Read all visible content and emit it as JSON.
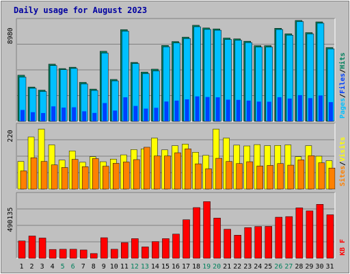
{
  "title": "Daily usage for August 2023",
  "colors": {
    "frame": "#c0c0c0",
    "title": "#0000a0",
    "gridline": "#808080",
    "hits": "#00805c",
    "files": "#0040ff",
    "pages": "#00c0ff",
    "visits": "#ffff00",
    "sites": "#ff8000",
    "kbytes": "#ff0000",
    "weekend": "#00805c",
    "weekday": "#000000"
  },
  "chart_data": [
    {
      "type": "bar",
      "name": "hits-files-pages",
      "categories": [
        "1",
        "2",
        "3",
        "4",
        "5",
        "6",
        "7",
        "8",
        "9",
        "10",
        "11",
        "12",
        "13",
        "14",
        "15",
        "16",
        "17",
        "18",
        "19",
        "20",
        "21",
        "22",
        "23",
        "24",
        "25",
        "26",
        "27",
        "28",
        "29",
        "30",
        "31"
      ],
      "weekend_days": [
        "5",
        "6",
        "12",
        "13",
        "19",
        "20",
        "26",
        "27"
      ],
      "ylabel_parts": [
        "Pages",
        "Files",
        "Hits"
      ],
      "ytick": 8980,
      "ylim": [
        0,
        10000
      ],
      "series": [
        {
          "name": "Hits",
          "values": [
            4480,
            3330,
            3030,
            5560,
            5130,
            5260,
            3790,
            3130,
            6810,
            4070,
            8920,
            5730,
            4790,
            5070,
            7380,
            7760,
            8190,
            9340,
            9080,
            8990,
            8100,
            8020,
            7790,
            7360,
            7360,
            9050,
            8510,
            9810,
            8630,
            9670,
            7170
          ]
        },
        {
          "name": "Files",
          "values": [
            1100,
            880,
            800,
            1450,
            1330,
            1360,
            970,
            810,
            1770,
            1040,
            2330,
            1490,
            1230,
            1310,
            1920,
            2010,
            2130,
            2420,
            2360,
            2330,
            2100,
            2080,
            2010,
            1910,
            1900,
            2340,
            2210,
            2540,
            2250,
            2510,
            1860
          ]
        },
        {
          "name": "Pages",
          "values": [
            4300,
            3210,
            2900,
            5420,
            5020,
            5140,
            3640,
            3000,
            6640,
            3930,
            8770,
            5620,
            4640,
            4900,
            7240,
            7620,
            8050,
            9200,
            8940,
            8860,
            7960,
            7880,
            7660,
            7220,
            7220,
            8930,
            8380,
            9700,
            8500,
            9540,
            7050
          ]
        }
      ]
    },
    {
      "type": "bar",
      "name": "visits-sites",
      "categories": [
        "1",
        "2",
        "3",
        "4",
        "5",
        "6",
        "7",
        "8",
        "9",
        "10",
        "11",
        "12",
        "13",
        "14",
        "15",
        "16",
        "17",
        "18",
        "19",
        "20",
        "21",
        "22",
        "23",
        "24",
        "25",
        "26",
        "27",
        "28",
        "29",
        "30",
        "31"
      ],
      "ylabel_parts": [
        "Sites",
        "Visits"
      ],
      "ytick": 220,
      "ylim": [
        0,
        250
      ],
      "series": [
        {
          "name": "Visits",
          "values": [
            105,
            198,
            228,
            168,
            110,
            145,
            102,
            123,
            104,
            114,
            130,
            150,
            153,
            194,
            149,
            165,
            171,
            140,
            128,
            228,
            194,
            167,
            164,
            169,
            165,
            166,
            168,
            123,
            165,
            125,
            108
          ]
        },
        {
          "name": "Sites",
          "values": [
            69,
            119,
            105,
            92,
            82,
            113,
            85,
            116,
            87,
            98,
            103,
            112,
            159,
            126,
            126,
            138,
            153,
            96,
            77,
            117,
            105,
            97,
            104,
            88,
            90,
            97,
            91,
            111,
            127,
            100,
            80
          ]
        }
      ]
    },
    {
      "type": "bar",
      "name": "kbytes",
      "categories": [
        "1",
        "2",
        "3",
        "4",
        "5",
        "6",
        "7",
        "8",
        "9",
        "10",
        "11",
        "12",
        "13",
        "14",
        "15",
        "16",
        "17",
        "18",
        "19",
        "20",
        "21",
        "22",
        "23",
        "24",
        "25",
        "26",
        "27",
        "28",
        "29",
        "30",
        "31"
      ],
      "ylabel_parts": [
        "KB F"
      ],
      "ytick": 490135,
      "ylim": [
        0,
        650000
      ],
      "series": [
        {
          "name": "KB F",
          "values": [
            171000,
            220000,
            200000,
            87000,
            89000,
            89000,
            82000,
            47000,
            203000,
            89000,
            155000,
            194000,
            112000,
            165000,
            194000,
            239000,
            381000,
            501000,
            560000,
            397000,
            287000,
            228000,
            303000,
            314000,
            315000,
            406000,
            412000,
            498000,
            468000,
            533000,
            430000
          ]
        }
      ]
    }
  ]
}
